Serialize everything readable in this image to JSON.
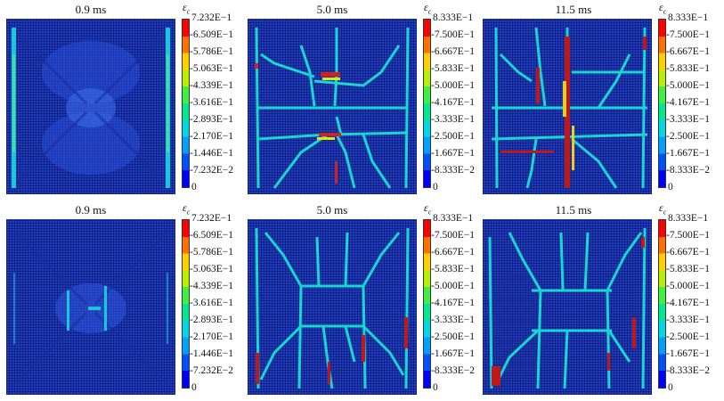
{
  "variable_symbol": "ε",
  "variable_subscript": "c",
  "colorbar_colors": [
    "#0000ff",
    "#0050ff",
    "#00a0ff",
    "#00d8e8",
    "#00e890",
    "#40f040",
    "#b8f000",
    "#ffd000",
    "#ff7000",
    "#ff0000"
  ],
  "rows": [
    {
      "panels": [
        {
          "time": "0.9 ms",
          "ticks": [
            "7.232E−1",
            "6.509E−1",
            "5.786E−1",
            "5.063E−1",
            "4.339E−1",
            "3.616E−1",
            "2.893E−1",
            "2.170E−1",
            "1.446E−1",
            "7.232E−2",
            "0"
          ]
        },
        {
          "time": "5.0 ms",
          "ticks": [
            "8.333E−1",
            "7.500E−1",
            "6.667E−1",
            "5.833E−1",
            "5.000E−1",
            "4.167E−1",
            "3.333E−1",
            "2.500E−1",
            "1.667E−1",
            "8.333E−2",
            "0"
          ]
        },
        {
          "time": "11.5 ms",
          "ticks": [
            "8.333E−1",
            "7.500E−1",
            "6.667E−1",
            "5.833E−1",
            "5.000E−1",
            "4.167E−1",
            "3.333E−1",
            "2.500E−1",
            "1.667E−1",
            "8.333E−2",
            "0"
          ]
        }
      ]
    },
    {
      "panels": [
        {
          "time": "0.9 ms",
          "ticks": [
            "7.232E−1",
            "6.509E−1",
            "5.786E−1",
            "5.063E−1",
            "4.339E−1",
            "3.616E−1",
            "2.893E−1",
            "2.170E−1",
            "1.446E−1",
            "7.232E−2",
            "0"
          ]
        },
        {
          "time": "5.0 ms",
          "ticks": [
            "8.333E−1",
            "7.500E−1",
            "6.667E−1",
            "5.833E−1",
            "5.000E−1",
            "4.167E−1",
            "3.333E−1",
            "2.500E−1",
            "1.667E−1",
            "8.333E−2",
            "0"
          ]
        },
        {
          "time": "11.5 ms",
          "ticks": [
            "8.333E−1",
            "7.500E−1",
            "6.667E−1",
            "5.833E−1",
            "5.000E−1",
            "4.167E−1",
            "3.333E−1",
            "2.500E−1",
            "1.667E−1",
            "8.333E−2",
            "0"
          ]
        }
      ]
    }
  ]
}
